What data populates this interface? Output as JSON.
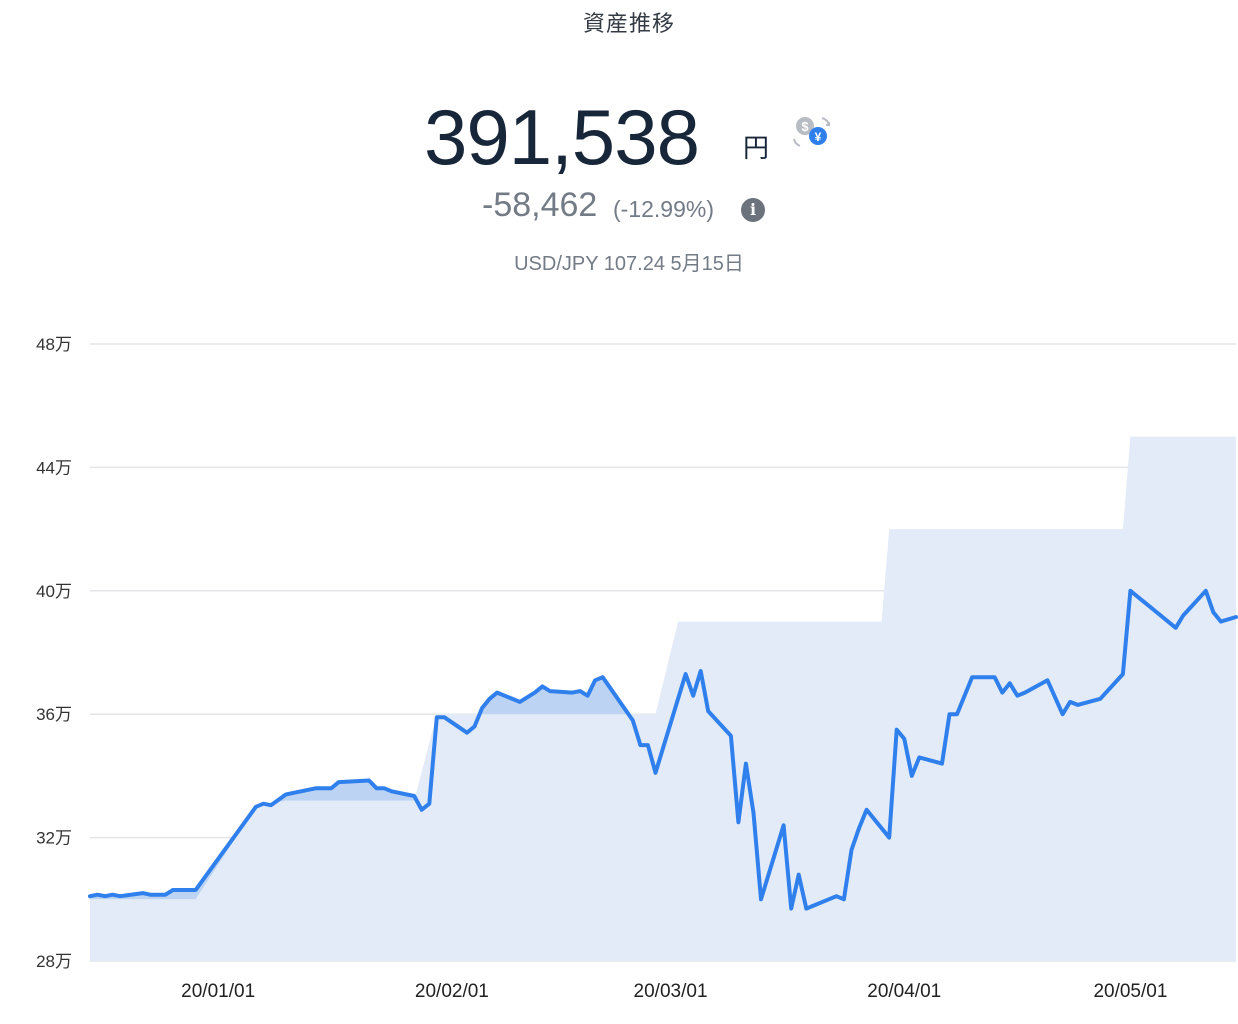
{
  "header": {
    "title": "資産推移",
    "amount": "391,538",
    "unit": "円",
    "change": "-58,462",
    "change_pct": "(-12.99%)",
    "info_icon": "info-icon",
    "fx_icon": "currency-exchange-icon",
    "rate_text": "USD/JPY 107.24 5月15日"
  },
  "colors": {
    "line": "#2f80ed",
    "area": "#e3ebf8",
    "gain_fill": "#bcd3f3",
    "grid": "#e3e5e8"
  },
  "chart_data": {
    "type": "line",
    "title": "資産推移",
    "ylim": [
      28,
      48
    ],
    "yticks": [
      {
        "value": 28,
        "label": "28万"
      },
      {
        "value": 32,
        "label": "32万"
      },
      {
        "value": 36,
        "label": "36万"
      },
      {
        "value": 40,
        "label": "40万"
      },
      {
        "value": 44,
        "label": "44万"
      },
      {
        "value": 48,
        "label": "48万"
      }
    ],
    "xrange": [
      "2019-12-15",
      "2020-05-15"
    ],
    "xticks": [
      {
        "date": "2020-01-01",
        "label": "20/01/01"
      },
      {
        "date": "2020-02-01",
        "label": "20/02/01"
      },
      {
        "date": "2020-03-01",
        "label": "20/03/01"
      },
      {
        "date": "2020-04-01",
        "label": "20/04/01"
      },
      {
        "date": "2020-05-01",
        "label": "20/05/01"
      }
    ],
    "series": [
      {
        "role": "value",
        "points": [
          [
            "2019-12-15",
            30.1
          ],
          [
            "2019-12-16",
            30.15
          ],
          [
            "2019-12-17",
            30.1
          ],
          [
            "2019-12-18",
            30.15
          ],
          [
            "2019-12-19",
            30.1
          ],
          [
            "2019-12-22",
            30.2
          ],
          [
            "2019-12-23",
            30.15
          ],
          [
            "2019-12-25",
            30.15
          ],
          [
            "2019-12-26",
            30.3
          ],
          [
            "2019-12-29",
            30.3
          ],
          [
            "2020-01-06",
            33.0
          ],
          [
            "2020-01-07",
            33.1
          ],
          [
            "2020-01-08",
            33.05
          ],
          [
            "2020-01-10",
            33.4
          ],
          [
            "2020-01-14",
            33.6
          ],
          [
            "2020-01-16",
            33.6
          ],
          [
            "2020-01-17",
            33.8
          ],
          [
            "2020-01-21",
            33.85
          ],
          [
            "2020-01-22",
            33.6
          ],
          [
            "2020-01-23",
            33.6
          ],
          [
            "2020-01-24",
            33.5
          ],
          [
            "2020-01-27",
            33.35
          ],
          [
            "2020-01-28",
            32.9
          ],
          [
            "2020-01-29",
            33.1
          ],
          [
            "2020-01-30",
            35.9
          ],
          [
            "2020-01-31",
            35.9
          ],
          [
            "2020-02-03",
            35.4
          ],
          [
            "2020-02-04",
            35.6
          ],
          [
            "2020-02-05",
            36.2
          ],
          [
            "2020-02-06",
            36.5
          ],
          [
            "2020-02-07",
            36.7
          ],
          [
            "2020-02-10",
            36.4
          ],
          [
            "2020-02-12",
            36.7
          ],
          [
            "2020-02-13",
            36.9
          ],
          [
            "2020-02-14",
            36.75
          ],
          [
            "2020-02-17",
            36.7
          ],
          [
            "2020-02-18",
            36.75
          ],
          [
            "2020-02-19",
            36.6
          ],
          [
            "2020-02-20",
            37.1
          ],
          [
            "2020-02-21",
            37.2
          ],
          [
            "2020-02-25",
            35.8
          ],
          [
            "2020-02-26",
            35.0
          ],
          [
            "2020-02-27",
            35.0
          ],
          [
            "2020-02-28",
            34.1
          ],
          [
            "2020-03-03",
            37.3
          ],
          [
            "2020-03-04",
            36.6
          ],
          [
            "2020-03-05",
            37.4
          ],
          [
            "2020-03-06",
            36.1
          ],
          [
            "2020-03-09",
            35.3
          ],
          [
            "2020-03-10",
            32.5
          ],
          [
            "2020-03-11",
            34.4
          ],
          [
            "2020-03-12",
            32.8
          ],
          [
            "2020-03-13",
            30.0
          ],
          [
            "2020-03-16",
            32.4
          ],
          [
            "2020-03-17",
            29.7
          ],
          [
            "2020-03-18",
            30.8
          ],
          [
            "2020-03-19",
            29.7
          ],
          [
            "2020-03-23",
            30.1
          ],
          [
            "2020-03-24",
            30.0
          ],
          [
            "2020-03-25",
            31.6
          ],
          [
            "2020-03-26",
            32.3
          ],
          [
            "2020-03-27",
            32.9
          ],
          [
            "2020-03-30",
            32.0
          ],
          [
            "2020-03-31",
            35.5
          ],
          [
            "2020-04-01",
            35.2
          ],
          [
            "2020-04-02",
            34.0
          ],
          [
            "2020-04-03",
            34.6
          ],
          [
            "2020-04-06",
            34.4
          ],
          [
            "2020-04-07",
            36.0
          ],
          [
            "2020-04-08",
            36.0
          ],
          [
            "2020-04-10",
            37.2
          ],
          [
            "2020-04-13",
            37.2
          ],
          [
            "2020-04-14",
            36.7
          ],
          [
            "2020-04-15",
            37.0
          ],
          [
            "2020-04-16",
            36.6
          ],
          [
            "2020-04-17",
            36.7
          ],
          [
            "2020-04-20",
            37.1
          ],
          [
            "2020-04-22",
            36.0
          ],
          [
            "2020-04-23",
            36.4
          ],
          [
            "2020-04-24",
            36.3
          ],
          [
            "2020-04-27",
            36.5
          ],
          [
            "2020-04-30",
            37.3
          ],
          [
            "2020-05-01",
            40.0
          ],
          [
            "2020-05-07",
            38.8
          ],
          [
            "2020-05-08",
            39.2
          ],
          [
            "2020-05-11",
            40.0
          ],
          [
            "2020-05-12",
            39.3
          ],
          [
            "2020-05-13",
            39.0
          ],
          [
            "2020-05-15",
            39.15
          ]
        ]
      },
      {
        "role": "principal",
        "points": [
          [
            "2019-12-15",
            30.0
          ],
          [
            "2019-12-29",
            30.0
          ],
          [
            "2019-12-29",
            30.0
          ],
          [
            "2020-01-06",
            33.0
          ],
          [
            "2020-01-10",
            33.2
          ],
          [
            "2020-01-27",
            33.2
          ],
          [
            "2020-01-30",
            36.0
          ],
          [
            "2020-02-28",
            36.0
          ],
          [
            "2020-03-02",
            39.0
          ],
          [
            "2020-03-29",
            39.0
          ],
          [
            "2020-03-30",
            42.0
          ],
          [
            "2020-04-30",
            42.0
          ],
          [
            "2020-05-01",
            45.0
          ],
          [
            "2020-05-15",
            45.0
          ]
        ]
      }
    ]
  }
}
